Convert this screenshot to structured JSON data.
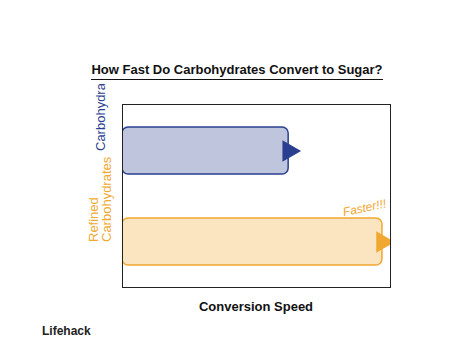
{
  "chart_data": {
    "type": "bar",
    "orientation": "horizontal",
    "title": "How Fast Do Carbohydrates Convert to Sugar?",
    "x_label": "Conversion Speed",
    "categories": [
      "Carbohydrates",
      "Refined Carbohydrates"
    ],
    "values": [
      62,
      97
    ],
    "colors": [
      "#2a3f8f",
      "#f0a830"
    ],
    "xlim": [
      0,
      100
    ],
    "xticks": [],
    "tick_labels": "y",
    "annotations": [
      {
        "text": "Faster!!!",
        "category": "Refined Carbohydrates"
      }
    ],
    "source": "Lifehack"
  }
}
